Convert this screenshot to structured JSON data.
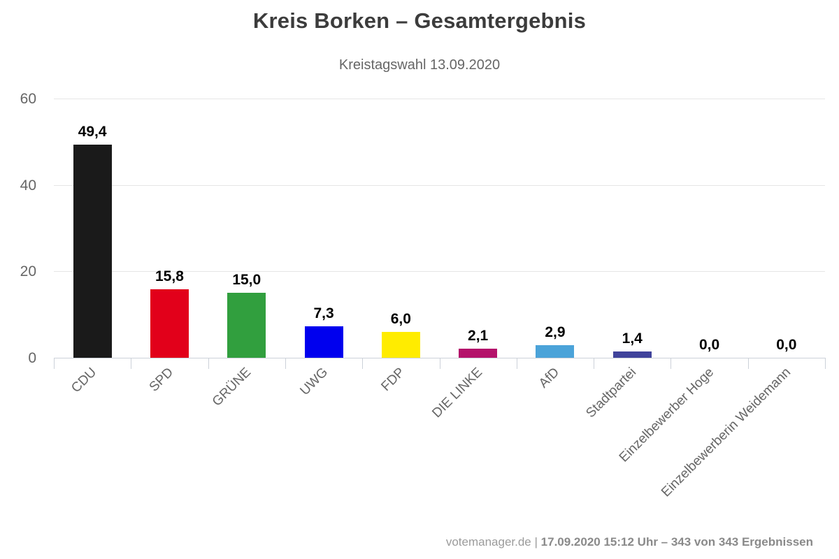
{
  "header": {
    "title": "Kreis Borken – Gesamtergebnis",
    "subtitle": "Kreistagswahl 13.09.2020"
  },
  "footer": {
    "source": "votemanager.de",
    "divider": "|",
    "status": "17.09.2020 15:12 Uhr – 343 von 343 Ergebnissen"
  },
  "chart_data": {
    "type": "bar",
    "title": "Kreis Borken – Gesamtergebnis",
    "subtitle": "Kreistagswahl 13.09.2020",
    "categories": [
      "CDU",
      "SPD",
      "GRÜNE",
      "UWG",
      "FDP",
      "DIE LINKE",
      "AfD",
      "Stadtpartei",
      "Einzelbewerber Hoge",
      "Einzelbewerberin Weidemann"
    ],
    "values": [
      49.4,
      15.8,
      15.0,
      7.3,
      6.0,
      2.1,
      2.9,
      1.4,
      0.0,
      0.0
    ],
    "value_labels": [
      "49,4",
      "15,8",
      "15,0",
      "7,3",
      "6,0",
      "2,1",
      "2,9",
      "1,4",
      "0,0",
      "0,0"
    ],
    "bar_colors": [
      "#1a1a1a",
      "#e2001a",
      "#319f3e",
      "#0000ee",
      "#ffec00",
      "#b4136b",
      "#4ba3d9",
      "#40439b",
      "#cccccc",
      "#cccccc"
    ],
    "xlabel": "",
    "ylabel": "",
    "ylim": [
      0,
      60
    ],
    "yticks": [
      0,
      20,
      40,
      60
    ],
    "grid": true,
    "legend": false,
    "colors": {
      "title_text": "#3c3c3c",
      "subtitle_text": "#666666",
      "axis_label_text": "#666666",
      "value_label_text": "#000000",
      "gridline": "#e6e6e6",
      "axis_line": "#ccd1d9",
      "background": "#ffffff"
    }
  }
}
